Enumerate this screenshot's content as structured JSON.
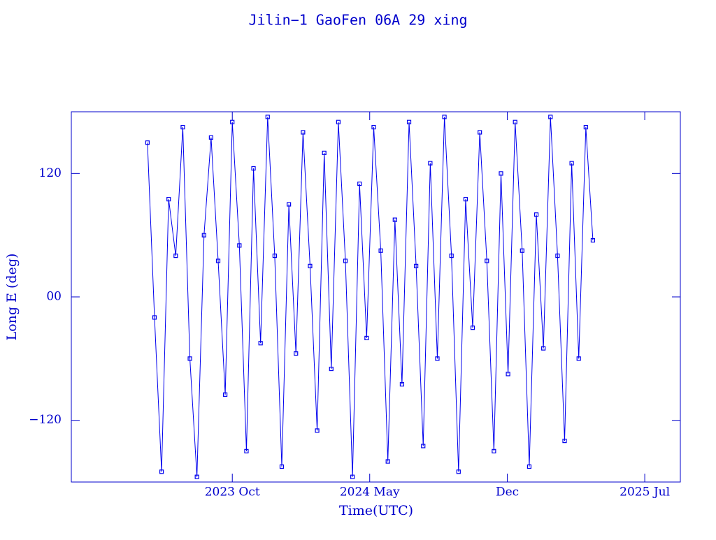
{
  "chart_data": {
    "type": "line",
    "title": "Jilin−1 GaoFen 06A 29 xing",
    "xlabel": "Time(UTC)",
    "ylabel": "Long E (deg)",
    "color": "#0000ee",
    "marker": "square",
    "xlim": [
      2023.067,
      2025.651
    ],
    "xticks": [
      {
        "value": 2023.75,
        "label": "2023 Oct"
      },
      {
        "value": 2024.333,
        "label": "2024 May"
      },
      {
        "value": 2024.917,
        "label": "Dec"
      },
      {
        "value": 2025.5,
        "label": "2025 Jul"
      }
    ],
    "ylim": [
      -180,
      180
    ],
    "yticks": [
      {
        "value": -120,
        "label": "−120"
      },
      {
        "value": 0,
        "label": "00"
      },
      120
    ],
    "x": [
      2023.39,
      2023.42,
      2023.45,
      2023.48,
      2023.51,
      2023.54,
      2023.57,
      2023.6,
      2023.63,
      2023.66,
      2023.69,
      2023.72,
      2023.75,
      2023.78,
      2023.81,
      2023.84,
      2023.87,
      2023.9,
      2023.93,
      2023.96,
      2023.99,
      2024.02,
      2024.05,
      2024.08,
      2024.11,
      2024.14,
      2024.17,
      2024.2,
      2024.23,
      2024.26,
      2024.29,
      2024.32,
      2024.35,
      2024.38,
      2024.41,
      2024.44,
      2024.47,
      2024.5,
      2024.53,
      2024.56,
      2024.59,
      2024.62,
      2024.65,
      2024.68,
      2024.71,
      2024.74,
      2024.77,
      2024.8,
      2024.83,
      2024.86,
      2024.89,
      2024.92,
      2024.95,
      2024.98,
      2025.01,
      2025.04,
      2025.07,
      2025.1,
      2025.13,
      2025.16,
      2025.19,
      2025.22,
      2025.25,
      2025.28
    ],
    "values": [
      150,
      -20,
      -170,
      95,
      40,
      165,
      -60,
      -175,
      60,
      155,
      35,
      -95,
      170,
      50,
      -150,
      125,
      -45,
      175,
      40,
      -165,
      90,
      -55,
      160,
      30,
      -130,
      140,
      -70,
      170,
      35,
      -175,
      110,
      -40,
      165,
      45,
      -160,
      75,
      -85,
      170,
      30,
      -145,
      130,
      -60,
      175,
      40,
      -170,
      95,
      -30,
      160,
      35,
      -150,
      120,
      -75,
      170,
      45,
      -165,
      80,
      -50,
      175,
      40,
      -140,
      130,
      -60,
      165,
      55
    ]
  }
}
